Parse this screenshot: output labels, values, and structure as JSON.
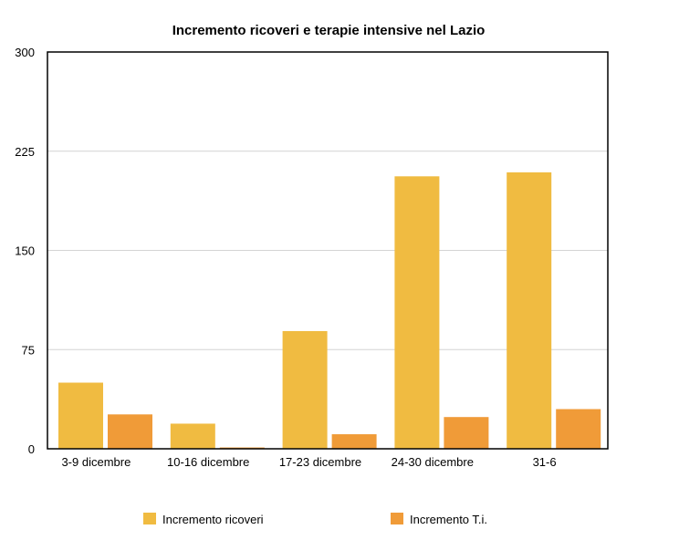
{
  "chart_data": {
    "type": "bar",
    "title": "Incremento ricoveri e terapie intensive nel Lazio",
    "categories": [
      "3-9 dicembre",
      "10-16 dicembre",
      "17-23  dicembre",
      "24-30  dicembre",
      "31-6"
    ],
    "series": [
      {
        "name": "Incremento ricoveri",
        "values": [
          50,
          19,
          89,
          206,
          209
        ],
        "color": "#F0BB41"
      },
      {
        "name": "Incremento T.i.",
        "values": [
          26,
          1,
          11,
          24,
          30
        ],
        "color": "#F09B38"
      }
    ],
    "ylim": [
      0,
      300
    ],
    "yticks": [
      "300",
      "225",
      "150",
      "75",
      "0"
    ],
    "ytick_values": [
      300,
      225,
      150,
      75,
      0
    ],
    "grid": true,
    "legend_position": "bottom"
  }
}
